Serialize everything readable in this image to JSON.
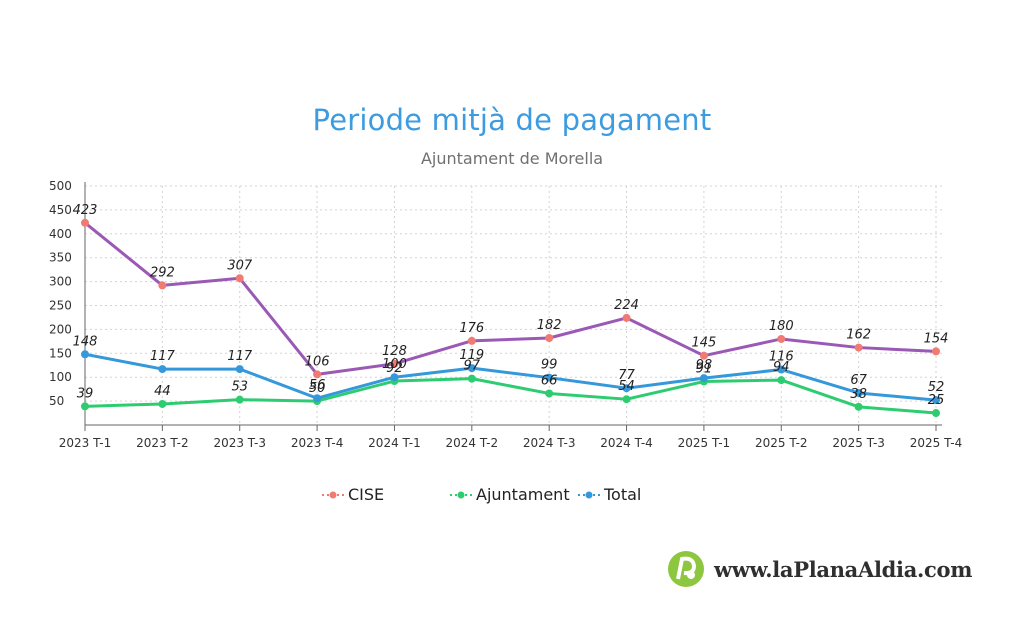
{
  "chart_data": {
    "type": "line",
    "title": "Periode mitjà de pagament",
    "subtitle": "Ajuntament de Morella",
    "categories": [
      "2023 T-1",
      "2023 T-2",
      "2023 T-3",
      "2023 T-4",
      "2024 T-1",
      "2024 T-2",
      "2024 T-3",
      "2024 T-4",
      "2025 T-1",
      "2025 T-2",
      "2025 T-3",
      "2025 T-4"
    ],
    "series": [
      {
        "name": "CISE",
        "values": [
          423,
          292,
          307,
          106,
          128,
          176,
          182,
          224,
          145,
          180,
          162,
          154
        ],
        "line_color": "#9b59b6",
        "marker_color": "#f07b72"
      },
      {
        "name": "Ajuntament",
        "values": [
          39,
          44,
          53,
          50,
          92,
          97,
          66,
          54,
          91,
          94,
          38,
          25
        ],
        "line_color": "#2ecc71",
        "marker_color": "#2ecc71"
      },
      {
        "name": "Total",
        "values": [
          148,
          117,
          117,
          56,
          100,
          119,
          99,
          77,
          98,
          116,
          67,
          52
        ],
        "line_color": "#3498db",
        "marker_color": "#3498db"
      }
    ],
    "ylim": [
      0,
      500
    ],
    "yticks": [
      50,
      100,
      150,
      200,
      250,
      300,
      350,
      400,
      450,
      500
    ],
    "grid": true,
    "legend_position": "bottom"
  },
  "watermark": {
    "text": "www.laPlanaAldia.com",
    "logo_color": "#8dc63f"
  }
}
